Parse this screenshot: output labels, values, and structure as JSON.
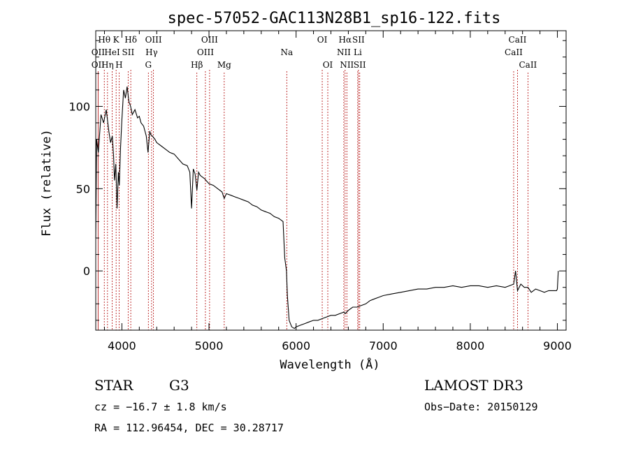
{
  "chart_data": {
    "type": "line",
    "title": "spec-57052-GAC113N28B1_sp16-122.fits",
    "xlabel": "Wavelength (Å)",
    "ylabel": "Flux (relative)",
    "xlim": [
      3700,
      9100
    ],
    "ylim": [
      -36,
      146
    ],
    "xticks": [
      4000,
      5000,
      6000,
      7000,
      8000,
      9000
    ],
    "yticks": [
      0,
      50,
      100
    ],
    "series": [
      {
        "name": "spectrum",
        "x": [
          3700,
          3710,
          3730,
          3760,
          3790,
          3820,
          3850,
          3870,
          3890,
          3905,
          3915,
          3930,
          3945,
          3960,
          3970,
          3985,
          4000,
          4020,
          4040,
          4060,
          4080,
          4100,
          4120,
          4150,
          4180,
          4200,
          4220,
          4250,
          4280,
          4300,
          4320,
          4330,
          4350,
          4380,
          4400,
          4450,
          4500,
          4550,
          4600,
          4650,
          4700,
          4750,
          4780,
          4800,
          4820,
          4840,
          4861,
          4880,
          4900,
          4950,
          5000,
          5050,
          5100,
          5150,
          5175,
          5200,
          5250,
          5300,
          5350,
          5400,
          5450,
          5500,
          5550,
          5600,
          5650,
          5700,
          5750,
          5800,
          5850,
          5870,
          5890,
          5900,
          5920,
          5950,
          5980,
          6000,
          6050,
          6100,
          6150,
          6200,
          6250,
          6300,
          6350,
          6400,
          6450,
          6500,
          6550,
          6563,
          6600,
          6650,
          6700,
          6750,
          6800,
          6850,
          6900,
          6950,
          7000,
          7100,
          7200,
          7300,
          7400,
          7500,
          7600,
          7700,
          7800,
          7900,
          8000,
          8100,
          8200,
          8300,
          8400,
          8450,
          8498,
          8520,
          8542,
          8580,
          8620,
          8662,
          8700,
          8750,
          8800,
          8850,
          8900,
          8950,
          8990,
          9000,
          9010
        ],
        "values": [
          20,
          80,
          72,
          95,
          90,
          98,
          85,
          78,
          82,
          70,
          55,
          65,
          38,
          60,
          52,
          75,
          92,
          110,
          105,
          112,
          103,
          100,
          95,
          98,
          93,
          94,
          90,
          88,
          82,
          72,
          85,
          83,
          82,
          80,
          78,
          76,
          74,
          72,
          71,
          68,
          65,
          64,
          60,
          38,
          62,
          59,
          49,
          60,
          58,
          56,
          53,
          52,
          50,
          48,
          44,
          47,
          46,
          45,
          44,
          43,
          42,
          40,
          39,
          37,
          36,
          35,
          33,
          32,
          30,
          8,
          0,
          -15,
          -30,
          -34,
          -35,
          -34,
          -33,
          -32,
          -31,
          -30,
          -30,
          -29,
          -28,
          -27,
          -27,
          -26,
          -25,
          -26,
          -24,
          -22,
          -22,
          -21,
          -20,
          -18,
          -17,
          -16,
          -15,
          -14,
          -13,
          -12,
          -11,
          -11,
          -10,
          -10,
          -9,
          -10,
          -9,
          -9,
          -10,
          -9,
          -10,
          -9,
          -8,
          0,
          -12,
          -8,
          -10,
          -10,
          -13,
          -11,
          -12,
          -13,
          -12,
          -12,
          -12,
          -11,
          0
        ]
      }
    ],
    "spectral_lines": [
      {
        "label": "Hθ",
        "x": 3798,
        "row": 0
      },
      {
        "label": "OII",
        "x": 3727,
        "row": 1
      },
      {
        "label": "OII",
        "x": 3727,
        "row": 2
      },
      {
        "label": "HeI",
        "x": 3889,
        "row": 1
      },
      {
        "label": "Hη",
        "x": 3835,
        "row": 2
      },
      {
        "label": "K",
        "x": 3934,
        "row": 0
      },
      {
        "label": "SII",
        "x": 4072,
        "row": 1
      },
      {
        "label": "H",
        "x": 3968,
        "row": 2
      },
      {
        "label": "Hδ",
        "x": 4102,
        "row": 0
      },
      {
        "label": "OIII",
        "x": 4363,
        "row": 0
      },
      {
        "label": "Hγ",
        "x": 4341,
        "row": 1
      },
      {
        "label": "G",
        "x": 4304,
        "row": 2
      },
      {
        "label": "Hβ",
        "x": 4861,
        "row": 2
      },
      {
        "label": "OIII",
        "x": 4959,
        "row": 1
      },
      {
        "label": "OIII",
        "x": 5007,
        "row": 0
      },
      {
        "label": "Mg",
        "x": 5175,
        "row": 2
      },
      {
        "label": "Na",
        "x": 5893,
        "row": 1
      },
      {
        "label": "OI",
        "x": 6300,
        "row": 0
      },
      {
        "label": "OI",
        "x": 6364,
        "row": 2
      },
      {
        "label": "Hα",
        "x": 6563,
        "row": 0
      },
      {
        "label": "NII",
        "x": 6548,
        "row": 1
      },
      {
        "label": "NII",
        "x": 6583,
        "row": 2
      },
      {
        "label": "SII",
        "x": 6716,
        "row": 0
      },
      {
        "label": "Li",
        "x": 6708,
        "row": 1
      },
      {
        "label": "SII",
        "x": 6731,
        "row": 2
      },
      {
        "label": "CaII",
        "x": 8542,
        "row": 0
      },
      {
        "label": "CaII",
        "x": 8498,
        "row": 1
      },
      {
        "label": "CaII",
        "x": 8662,
        "row": 2
      }
    ]
  },
  "info": {
    "class": "STAR",
    "subclass": "G3",
    "survey": "LAMOST DR3",
    "cz": "cz = −16.7 ± 1.8 km/s",
    "obs_date": "Obs−Date: 20150129",
    "coords": "RA = 112.96454, DEC =  30.28717"
  }
}
